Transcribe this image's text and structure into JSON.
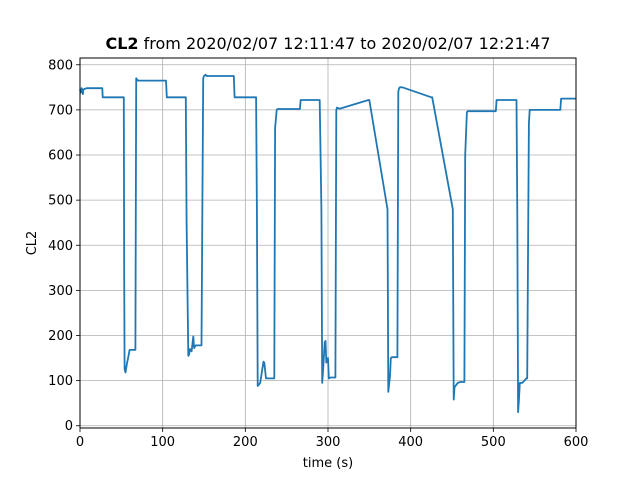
{
  "chart_data": {
    "type": "line",
    "title_bold": "CL2",
    "title_rest": " from 2020/02/07 12:11:47 to 2020/02/07 12:21:47",
    "xlabel": "time (s)",
    "ylabel": "CL2",
    "xlim": [
      0,
      600
    ],
    "ylim": [
      -5,
      815
    ],
    "xticks": [
      0,
      100,
      200,
      300,
      400,
      500,
      600
    ],
    "yticks": [
      0,
      100,
      200,
      300,
      400,
      500,
      600,
      700,
      800
    ],
    "grid": true,
    "line_color": "#1f77b4",
    "series": [
      {
        "x": [
          0,
          1,
          2,
          3,
          3.5,
          4,
          5,
          8,
          27,
          27.5,
          53,
          53.5,
          54,
          55,
          57,
          58,
          60,
          62,
          65,
          67,
          68,
          70,
          100,
          104,
          105,
          128,
          129,
          131,
          132,
          133,
          135,
          137,
          138,
          140,
          147,
          149,
          150,
          152,
          153,
          186,
          187,
          213,
          214,
          215,
          218,
          220,
          222,
          223,
          225,
          230,
          235,
          236,
          238,
          239,
          240,
          266,
          267,
          290,
          292,
          293,
          294,
          296,
          297,
          298,
          300,
          301,
          303,
          309,
          310,
          311,
          313,
          314,
          315,
          349,
          350,
          372,
          373,
          374,
          375,
          376,
          377,
          384,
          385,
          386,
          387,
          388,
          390,
          425,
          426,
          451,
          452,
          453,
          455,
          457,
          460,
          465,
          466,
          468,
          469,
          470,
          503,
          504,
          528,
          529,
          530,
          531,
          532,
          535,
          540,
          541,
          543,
          544,
          545,
          581,
          582,
          600
        ],
        "y": [
          745,
          738,
          748,
          742,
          735,
          745,
          746,
          748,
          748,
          728,
          728,
          330,
          125,
          118,
          140,
          148,
          168,
          168,
          168,
          168,
          770,
          765,
          765,
          765,
          728,
          728,
          450,
          155,
          158,
          170,
          165,
          198,
          172,
          178,
          178,
          770,
          775,
          778,
          775,
          775,
          728,
          728,
          480,
          88,
          95,
          120,
          142,
          140,
          105,
          105,
          105,
          660,
          700,
          702,
          702,
          702,
          722,
          722,
          480,
          95,
          120,
          185,
          188,
          140,
          150,
          105,
          107,
          107,
          700,
          705,
          703,
          703,
          703,
          722,
          722,
          480,
          75,
          95,
          110,
          150,
          152,
          152,
          740,
          748,
          750,
          750,
          750,
          728,
          728,
          480,
          58,
          85,
          90,
          95,
          97,
          97,
          600,
          695,
          697,
          697,
          697,
          722,
          722,
          470,
          30,
          60,
          95,
          95,
          105,
          105,
          670,
          700,
          700,
          700,
          725,
          725
        ]
      }
    ]
  }
}
